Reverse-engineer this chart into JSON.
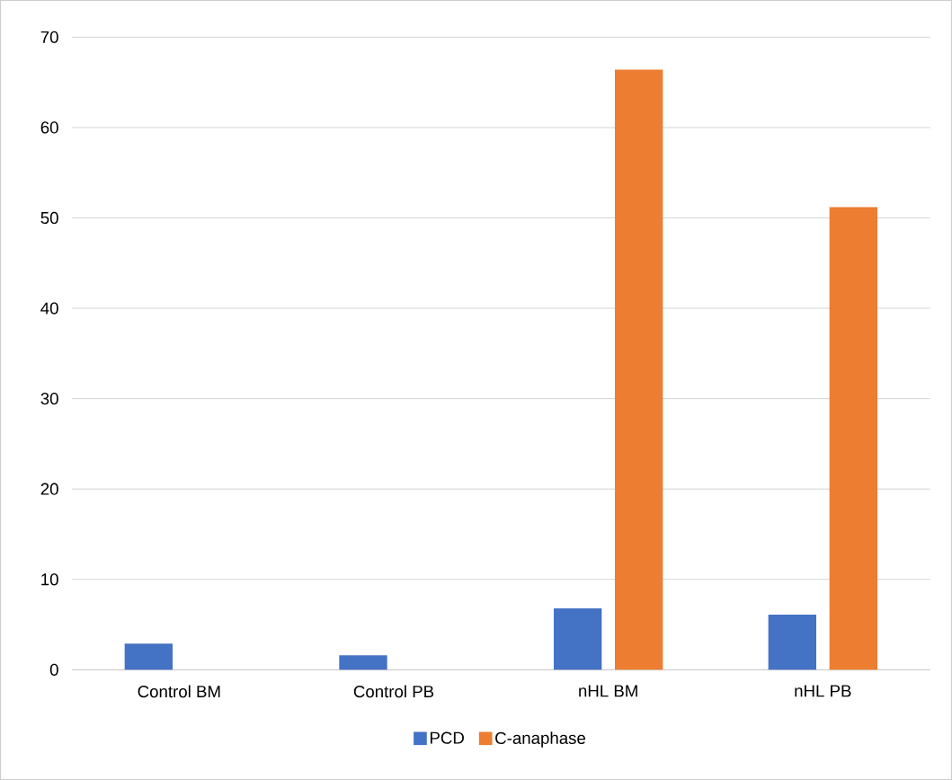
{
  "chart_data": {
    "type": "bar",
    "categories": [
      "Control BM",
      "Control PB",
      "nHL BM",
      "nHL PB"
    ],
    "series": [
      {
        "name": "PCD",
        "color": "#4472c4",
        "values": [
          2.9,
          1.6,
          6.8,
          6.1
        ]
      },
      {
        "name": "C-anaphase",
        "color": "#ed7d31",
        "values": [
          0,
          0,
          66.4,
          51.2
        ]
      }
    ],
    "ylim": [
      0,
      70
    ],
    "yticks": [
      0,
      10,
      20,
      30,
      40,
      50,
      60,
      70
    ],
    "grid": "y",
    "legend": "bottom"
  }
}
